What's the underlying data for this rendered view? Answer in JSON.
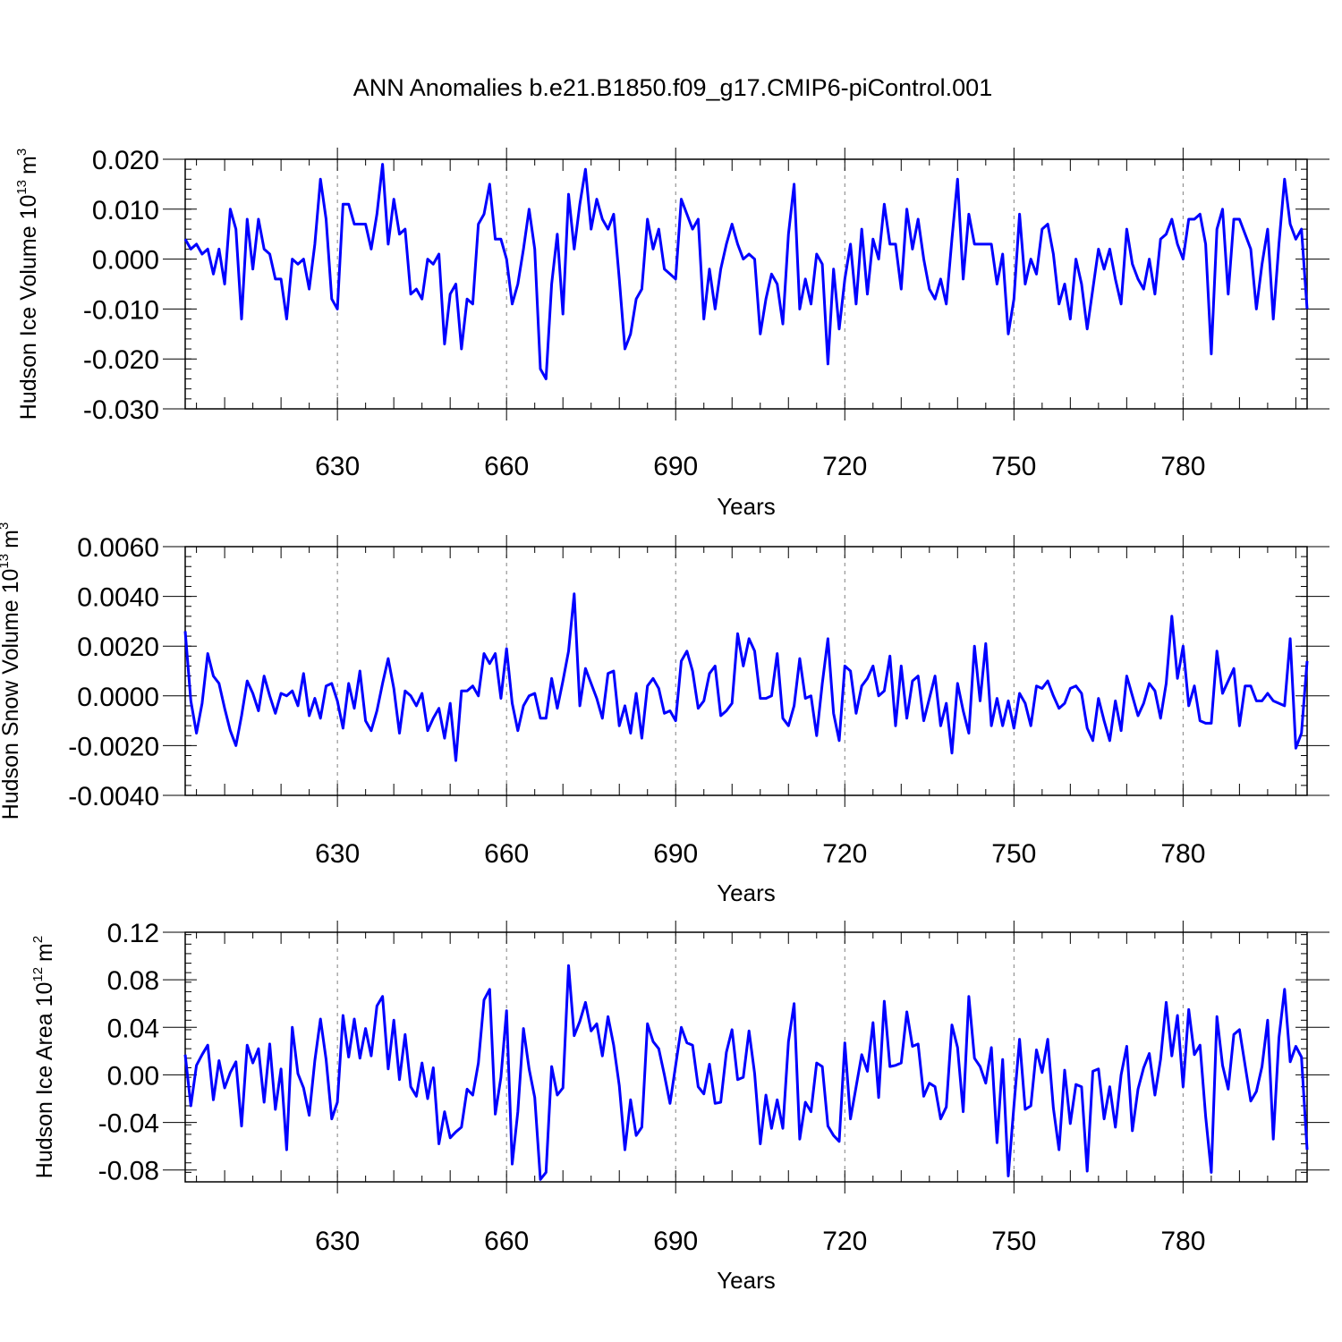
{
  "title": "ANN Anomalies b.e21.B1850.f09_g17.CMIP6-piControl.001",
  "chart_data": [
    {
      "type": "line",
      "ylabel_main": "Hudson Ice Volume 10",
      "ylabel_sup": "13",
      "ylabel_unit": "m",
      "ylabel_unit_sup": "3",
      "xlabel": "Years",
      "xlim": [
        603,
        802
      ],
      "ylim": [
        -0.03,
        0.02
      ],
      "yticks": [
        -0.03,
        -0.02,
        -0.01,
        0.0,
        0.01,
        0.02
      ],
      "ytick_labels": [
        "-0.030",
        "-0.020",
        "-0.010",
        "0.000",
        "0.010",
        "0.020"
      ],
      "xticks": [
        630,
        660,
        690,
        720,
        750,
        780
      ],
      "xtick_labels": [
        "630",
        "660",
        "690",
        "720",
        "750",
        "780"
      ],
      "start_year": 603,
      "series": [
        {
          "name": "Hudson Ice Volume",
          "color": "#0000ff",
          "values": [
            0.004,
            0.002,
            0.003,
            0.001,
            0.002,
            -0.003,
            0.002,
            -0.005,
            0.01,
            0.006,
            -0.012,
            0.008,
            -0.002,
            0.008,
            0.002,
            0.001,
            -0.004,
            -0.004,
            -0.012,
            0.0,
            -0.001,
            0.0,
            -0.006,
            0.003,
            0.016,
            0.008,
            -0.008,
            -0.01,
            0.011,
            0.011,
            0.007,
            0.007,
            0.007,
            0.002,
            0.009,
            0.019,
            0.003,
            0.012,
            0.005,
            0.006,
            -0.007,
            -0.006,
            -0.008,
            0.0,
            -0.001,
            0.001,
            -0.017,
            -0.007,
            -0.005,
            -0.018,
            -0.008,
            -0.009,
            0.007,
            0.009,
            0.015,
            0.004,
            0.004,
            0.0,
            -0.009,
            -0.005,
            0.002,
            0.01,
            0.002,
            -0.022,
            -0.024,
            -0.005,
            0.005,
            -0.011,
            0.013,
            0.002,
            0.011,
            0.018,
            0.006,
            0.012,
            0.008,
            0.006,
            0.009,
            -0.004,
            -0.018,
            -0.015,
            -0.008,
            -0.006,
            0.008,
            0.002,
            0.006,
            -0.002,
            -0.003,
            -0.004,
            0.012,
            0.009,
            0.006,
            0.008,
            -0.012,
            -0.002,
            -0.01,
            -0.002,
            0.003,
            0.007,
            0.003,
            0.0,
            0.001,
            0.0,
            -0.015,
            -0.008,
            -0.003,
            -0.005,
            -0.013,
            0.005,
            0.015,
            -0.01,
            -0.004,
            -0.009,
            0.001,
            -0.001,
            -0.021,
            -0.002,
            -0.014,
            -0.004,
            0.003,
            -0.009,
            0.006,
            -0.007,
            0.004,
            0.0,
            0.011,
            0.003,
            0.003,
            -0.006,
            0.01,
            0.002,
            0.008,
            0.0,
            -0.006,
            -0.008,
            -0.004,
            -0.009,
            0.004,
            0.016,
            -0.004,
            0.009,
            0.003,
            0.003,
            0.003,
            0.003,
            -0.005,
            0.001,
            -0.015,
            -0.008,
            0.009,
            -0.005,
            0.0,
            -0.003,
            0.006,
            0.007,
            0.001,
            -0.009,
            -0.005,
            -0.012,
            0.0,
            -0.005,
            -0.014,
            -0.006,
            0.002,
            -0.002,
            0.002,
            -0.004,
            -0.009,
            0.006,
            -0.001,
            -0.004,
            -0.006,
            0.0,
            -0.007,
            0.004,
            0.005,
            0.008,
            0.003,
            0.0,
            0.008,
            0.008,
            0.009,
            0.003,
            -0.019,
            0.006,
            0.01,
            -0.007,
            0.008,
            0.008,
            0.005,
            0.002,
            -0.01,
            -0.001,
            0.006,
            -0.012,
            0.003,
            0.016,
            0.007,
            0.004,
            0.006,
            -0.01
          ]
        }
      ]
    },
    {
      "type": "line",
      "ylabel_main": "Hudson Snow Volume 10",
      "ylabel_sup": "13",
      "ylabel_unit": "m",
      "ylabel_unit_sup": "3",
      "xlabel": "Years",
      "xlim": [
        603,
        802
      ],
      "ylim": [
        -0.004,
        0.006
      ],
      "yticks": [
        -0.004,
        -0.002,
        0.0,
        0.002,
        0.004,
        0.006
      ],
      "ytick_labels": [
        "-0.0040",
        "-0.0020",
        "0.0000",
        "0.0020",
        "0.0040",
        "0.0060"
      ],
      "xticks": [
        630,
        660,
        690,
        720,
        750,
        780
      ],
      "xtick_labels": [
        "630",
        "660",
        "690",
        "720",
        "750",
        "780"
      ],
      "start_year": 603,
      "series": [
        {
          "name": "Hudson Snow Volume",
          "color": "#0000ff",
          "values": [
            0.0026,
            -0.0002,
            -0.0015,
            -0.0003,
            0.0017,
            0.0008,
            0.0005,
            -0.0005,
            -0.0014,
            -0.002,
            -0.0008,
            0.0006,
            0.0001,
            -0.0006,
            0.0008,
            0.0,
            -0.0007,
            0.0001,
            0.0,
            0.0002,
            -0.0004,
            0.0009,
            -0.0008,
            -0.0001,
            -0.0009,
            0.0004,
            0.0005,
            -0.0002,
            -0.0013,
            0.0005,
            -0.0005,
            0.001,
            -0.001,
            -0.0014,
            -0.0006,
            0.0005,
            0.0015,
            0.0003,
            -0.0015,
            0.0002,
            0.0,
            -0.0004,
            0.0001,
            -0.0014,
            -0.0009,
            -0.0005,
            -0.0017,
            -0.0003,
            -0.0026,
            0.0002,
            0.0002,
            0.0004,
            0.0,
            0.0017,
            0.0013,
            0.0017,
            -0.0001,
            0.0019,
            -0.0003,
            -0.0014,
            -0.0004,
            0.0,
            0.0001,
            -0.0009,
            -0.0009,
            0.0007,
            -0.0005,
            0.0006,
            0.0018,
            0.0041,
            -0.0004,
            0.0011,
            0.0005,
            -0.0001,
            -0.0009,
            0.0009,
            0.001,
            -0.0012,
            -0.0004,
            -0.0015,
            0.0001,
            -0.0017,
            0.0004,
            0.0007,
            0.0003,
            -0.0007,
            -0.0006,
            -0.001,
            0.0014,
            0.0018,
            0.001,
            -0.0005,
            -0.0002,
            0.0009,
            0.0012,
            -0.0008,
            -0.0006,
            -0.0003,
            0.0025,
            0.0012,
            0.0023,
            0.0018,
            -0.0001,
            -0.0001,
            0.0,
            0.0017,
            -0.0009,
            -0.0012,
            -0.0004,
            0.0015,
            -0.0001,
            0.0,
            -0.0016,
            0.0005,
            0.0023,
            -0.0007,
            -0.0018,
            0.0012,
            0.001,
            -0.0007,
            0.0004,
            0.0007,
            0.0012,
            0.0,
            0.0002,
            0.0016,
            -0.0012,
            0.0012,
            -0.0009,
            0.0006,
            0.0008,
            -0.001,
            -0.0001,
            0.0008,
            -0.0012,
            -0.0003,
            -0.0023,
            0.0005,
            -0.0006,
            -0.0015,
            0.002,
            -0.0002,
            0.0021,
            -0.0012,
            -0.0001,
            -0.0012,
            -0.0002,
            -0.0013,
            0.0001,
            -0.0003,
            -0.0012,
            0.0004,
            0.0003,
            0.0006,
            0.0,
            -0.0005,
            -0.0003,
            0.0003,
            0.0004,
            0.0001,
            -0.0013,
            -0.0018,
            -0.0001,
            -0.001,
            -0.0018,
            -0.0002,
            -0.0014,
            0.0008,
            0.0,
            -0.0008,
            -0.0003,
            0.0005,
            0.0002,
            -0.0009,
            0.0005,
            0.0032,
            0.0007,
            0.002,
            -0.0004,
            0.0004,
            -0.001,
            -0.0011,
            -0.0011,
            0.0018,
            0.0001,
            0.0006,
            0.0011,
            -0.0012,
            0.0004,
            0.0004,
            -0.0002,
            -0.0002,
            0.0001,
            -0.0002,
            -0.0003,
            -0.0004,
            0.0023,
            -0.0021,
            -0.0015,
            0.0014
          ]
        }
      ]
    },
    {
      "type": "line",
      "ylabel_main": "Hudson Ice Area 10",
      "ylabel_sup": "12",
      "ylabel_unit": "m",
      "ylabel_unit_sup": "2",
      "xlabel": "Years",
      "xlim": [
        603,
        802
      ],
      "ylim": [
        -0.09,
        0.12
      ],
      "yticks": [
        -0.08,
        -0.04,
        0.0,
        0.04,
        0.08,
        0.12
      ],
      "ytick_labels": [
        "-0.08",
        "-0.04",
        "0.00",
        "0.04",
        "0.08",
        "0.12"
      ],
      "xticks": [
        630,
        660,
        690,
        720,
        750,
        780
      ],
      "xtick_labels": [
        "630",
        "660",
        "690",
        "720",
        "750",
        "780"
      ],
      "start_year": 603,
      "series": [
        {
          "name": "Hudson Ice Area",
          "color": "#0000ff",
          "values": [
            0.017,
            -0.026,
            0.008,
            0.017,
            0.025,
            -0.021,
            0.012,
            -0.011,
            0.002,
            0.011,
            -0.043,
            0.025,
            0.01,
            0.022,
            -0.023,
            0.026,
            -0.029,
            0.005,
            -0.063,
            0.04,
            0.001,
            -0.011,
            -0.034,
            0.012,
            0.047,
            0.013,
            -0.037,
            -0.023,
            0.05,
            0.015,
            0.047,
            0.014,
            0.039,
            0.016,
            0.058,
            0.066,
            0.005,
            0.046,
            -0.004,
            0.034,
            -0.01,
            -0.018,
            0.01,
            -0.02,
            0.006,
            -0.058,
            -0.031,
            -0.053,
            -0.048,
            -0.044,
            -0.012,
            -0.017,
            0.01,
            0.063,
            0.072,
            -0.033,
            -0.002,
            0.054,
            -0.075,
            -0.031,
            0.039,
            0.005,
            -0.019,
            -0.088,
            -0.082,
            0.007,
            -0.017,
            -0.011,
            0.092,
            0.033,
            0.045,
            0.061,
            0.037,
            0.043,
            0.016,
            0.049,
            0.025,
            -0.009,
            -0.063,
            -0.021,
            -0.051,
            -0.044,
            0.043,
            0.028,
            0.022,
            0.0,
            -0.024,
            0.008,
            0.04,
            0.027,
            0.025,
            -0.01,
            -0.016,
            0.009,
            -0.024,
            -0.023,
            0.019,
            0.038,
            -0.004,
            -0.002,
            0.037,
            0.001,
            -0.058,
            -0.017,
            -0.045,
            -0.021,
            -0.045,
            0.028,
            0.06,
            -0.054,
            -0.023,
            -0.031,
            0.01,
            0.007,
            -0.043,
            -0.051,
            -0.056,
            0.027,
            -0.037,
            -0.01,
            0.017,
            0.003,
            0.044,
            -0.019,
            0.062,
            0.007,
            0.008,
            0.01,
            0.053,
            0.024,
            0.026,
            -0.018,
            -0.007,
            -0.01,
            -0.037,
            -0.027,
            0.042,
            0.023,
            -0.031,
            0.066,
            0.014,
            0.007,
            -0.007,
            0.023,
            -0.057,
            0.013,
            -0.085,
            -0.026,
            0.03,
            -0.029,
            -0.026,
            0.021,
            0.002,
            0.03,
            -0.028,
            -0.063,
            0.004,
            -0.041,
            -0.008,
            -0.01,
            -0.081,
            0.003,
            0.005,
            -0.037,
            -0.01,
            -0.044,
            0.0,
            0.024,
            -0.047,
            -0.012,
            0.006,
            0.018,
            -0.017,
            0.013,
            0.061,
            0.016,
            0.05,
            -0.01,
            0.055,
            0.017,
            0.025,
            -0.035,
            -0.082,
            0.049,
            0.008,
            -0.012,
            0.034,
            0.038,
            0.008,
            -0.022,
            -0.014,
            0.007,
            0.046,
            -0.054,
            0.031,
            0.072,
            0.011,
            0.024,
            0.015,
            -0.063
          ]
        }
      ]
    }
  ]
}
